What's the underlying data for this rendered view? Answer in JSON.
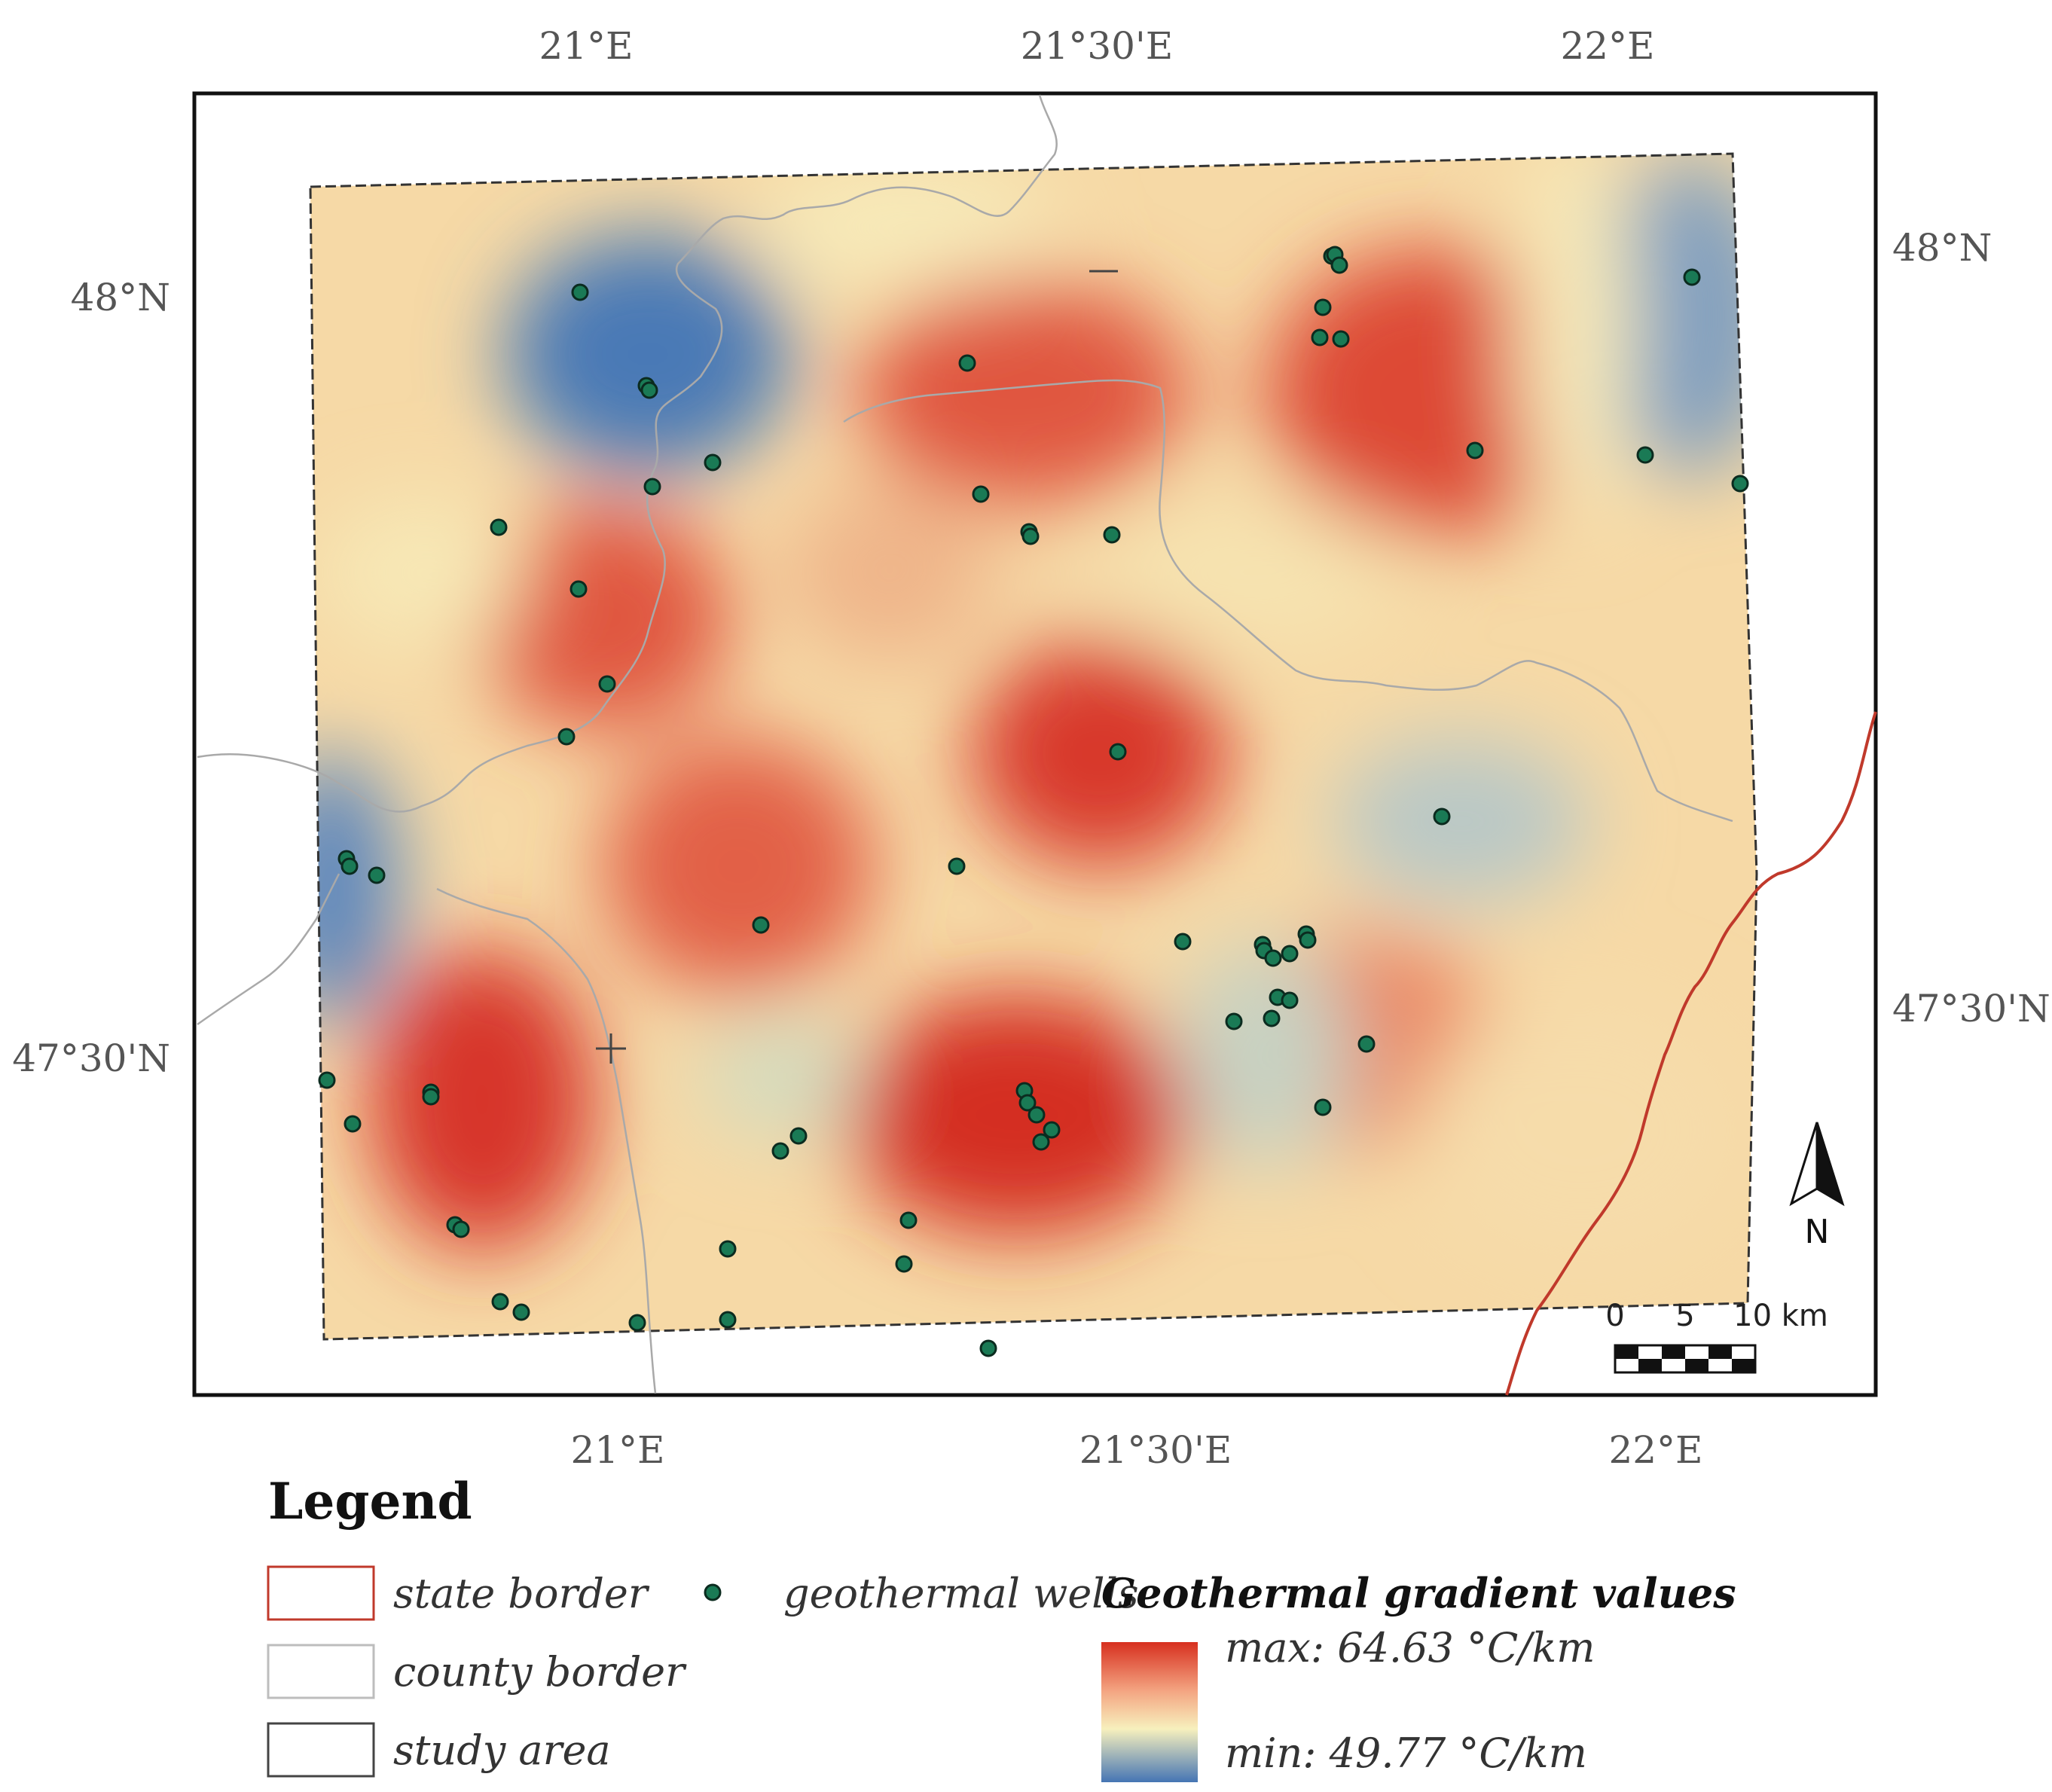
{
  "map": {
    "lon_ticks_top": [
      "21°E",
      "21°30'E",
      "22°E"
    ],
    "lon_ticks_bottom": [
      "21°E",
      "21°30'E",
      "22°E"
    ],
    "lat_ticks_left": [
      "48°N",
      "47°30'N"
    ],
    "lat_ticks_right": [
      "48°N",
      "47°30'N"
    ],
    "north_label": "N",
    "scale_bar": {
      "labels": [
        "0",
        "5",
        "10 km"
      ]
    }
  },
  "legend": {
    "title": "Legend",
    "items": [
      {
        "label": "state border",
        "color": "#c0392b"
      },
      {
        "label": "county border",
        "color": "#bdbdbd"
      },
      {
        "label": "study area",
        "color": "#444444"
      }
    ],
    "wells_label": "geothermal wells",
    "wells_color": "#1a7a55",
    "gradient_title": "Geothermal gradient values",
    "gradient_max": "max: 64.63 °C/km",
    "gradient_min": "min: 49.77 °C/km",
    "gradient_colors": [
      "#d7301f",
      "#f4a582",
      "#f7f0bd",
      "#4575b4"
    ]
  }
}
